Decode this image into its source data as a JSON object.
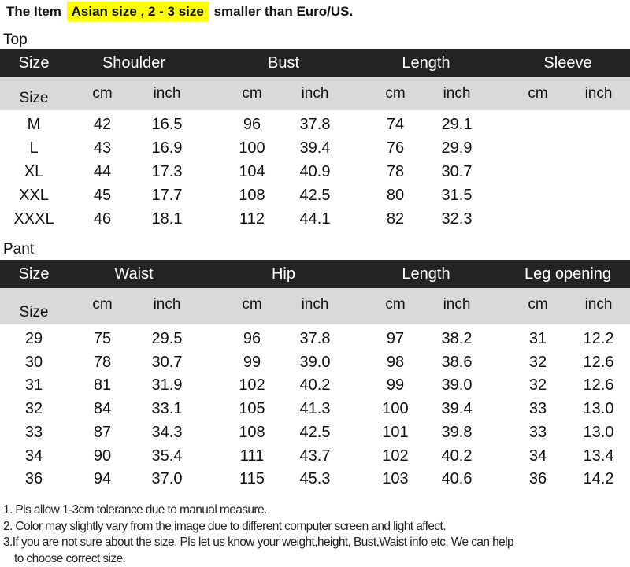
{
  "title": {
    "prefix": "The Item",
    "highlight": "Asian size , 2 - 3 size",
    "suffix": "smaller than Euro/US."
  },
  "top": {
    "label": "Top",
    "headers": [
      "Size",
      "Shoulder",
      "Bust",
      "Length",
      "Sleeve"
    ],
    "subheaders": [
      "Size",
      "cm",
      "inch",
      "cm",
      "inch",
      "cm",
      "inch",
      "cm",
      "inch"
    ],
    "rows": [
      [
        "M",
        "42",
        "16.5",
        "96",
        "37.8",
        "74",
        "29.1",
        "",
        ""
      ],
      [
        "L",
        "43",
        "16.9",
        "100",
        "39.4",
        "76",
        "29.9",
        "",
        ""
      ],
      [
        "XL",
        "44",
        "17.3",
        "104",
        "40.9",
        "78",
        "30.7",
        "",
        ""
      ],
      [
        "XXL",
        "45",
        "17.7",
        "108",
        "42.5",
        "80",
        "31.5",
        "",
        ""
      ],
      [
        "XXXL",
        "46",
        "18.1",
        "112",
        "44.1",
        "82",
        "32.3",
        "",
        ""
      ]
    ]
  },
  "pant": {
    "label": "Pant",
    "headers": [
      "Size",
      "Waist",
      "Hip",
      "Length",
      "Leg opening"
    ],
    "subheaders": [
      "Size",
      "cm",
      "inch",
      "cm",
      "inch",
      "cm",
      "inch",
      "cm",
      "inch"
    ],
    "rows": [
      [
        "29",
        "75",
        "29.5",
        "96",
        "37.8",
        "97",
        "38.2",
        "31",
        "12.2"
      ],
      [
        "30",
        "78",
        "30.7",
        "99",
        "39.0",
        "98",
        "38.6",
        "32",
        "12.6"
      ],
      [
        "31",
        "81",
        "31.9",
        "102",
        "40.2",
        "99",
        "39.0",
        "32",
        "12.6"
      ],
      [
        "32",
        "84",
        "33.1",
        "105",
        "41.3",
        "100",
        "39.4",
        "33",
        "13.0"
      ],
      [
        "33",
        "87",
        "34.3",
        "108",
        "42.5",
        "101",
        "39.8",
        "33",
        "13.0"
      ],
      [
        "34",
        "90",
        "35.4",
        "111",
        "43.7",
        "102",
        "40.2",
        "34",
        "13.4"
      ],
      [
        "36",
        "94",
        "37.0",
        "115",
        "45.3",
        "103",
        "40.6",
        "36",
        "14.2"
      ]
    ]
  },
  "notes": [
    "1. Pls allow 1-3cm tolerance due to manual measure.",
    "2. Color may slightly vary from the image due to different computer screen and light affect.",
    "3.If you are not sure about the size, Pls let us know your weight,height, Bust,Waist info etc, We can help",
    "   to choose correct size."
  ],
  "colors": {
    "header_bg": "#232323",
    "subheader_bg": "#d9d9d9",
    "highlight": "#ffff00"
  }
}
